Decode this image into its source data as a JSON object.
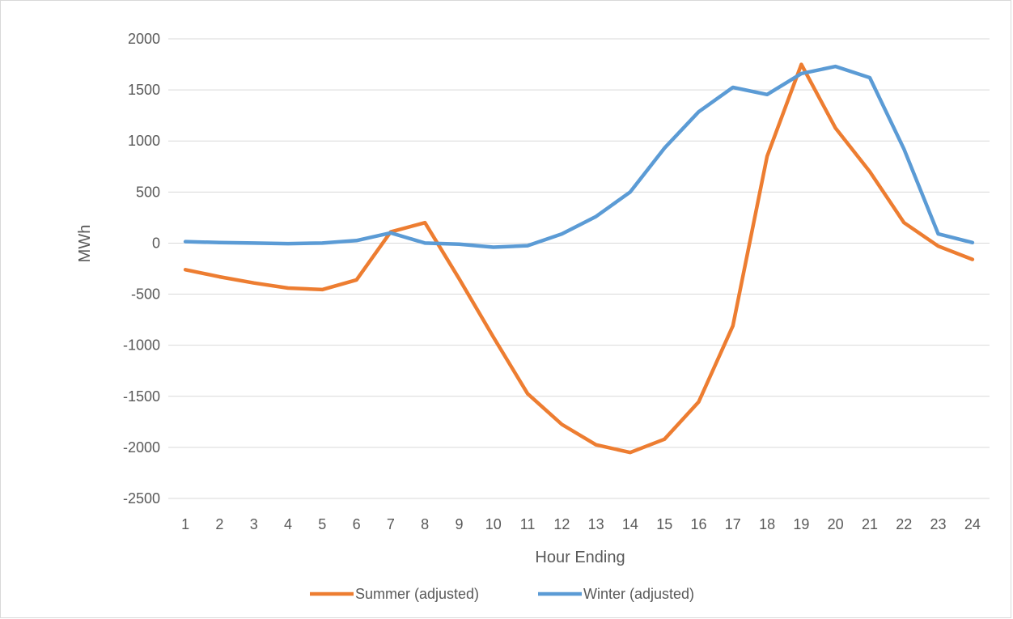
{
  "chart_data": {
    "type": "line",
    "title": "",
    "xlabel": "Hour Ending",
    "ylabel": "MWh",
    "ylim": [
      -2500,
      2000
    ],
    "yticks": [
      2000,
      1500,
      1000,
      500,
      0,
      -500,
      -1000,
      -1500,
      -2000,
      -2500
    ],
    "categories": [
      "1",
      "2",
      "3",
      "4",
      "5",
      "6",
      "7",
      "8",
      "9",
      "10",
      "11",
      "12",
      "13",
      "14",
      "15",
      "16",
      "17",
      "18",
      "19",
      "20",
      "21",
      "22",
      "23",
      "24"
    ],
    "grid": true,
    "legend_position": "bottom",
    "series": [
      {
        "name": "Summer (adjusted)",
        "color": "#ED7D31",
        "values": [
          -260,
          -330,
          -390,
          -440,
          -455,
          -360,
          110,
          200,
          -350,
          -920,
          -1475,
          -1775,
          -1975,
          -2050,
          -1920,
          -1555,
          -810,
          850,
          1750,
          1125,
          700,
          200,
          -30,
          -160
        ]
      },
      {
        "name": "Winter (adjusted)",
        "color": "#5B9BD5",
        "values": [
          15,
          5,
          0,
          -5,
          0,
          25,
          100,
          0,
          -10,
          -40,
          -25,
          90,
          260,
          500,
          930,
          1285,
          1525,
          1455,
          1660,
          1730,
          1620,
          920,
          90,
          5
        ]
      }
    ]
  }
}
